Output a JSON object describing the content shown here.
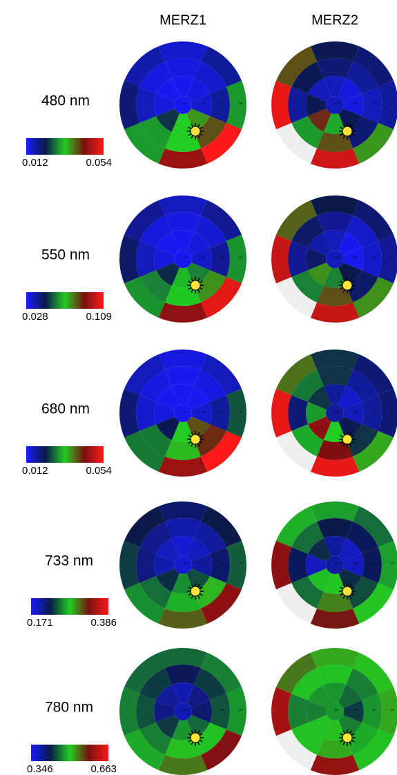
{
  "figure": {
    "columns": [
      "MERZ1",
      "MERZ2"
    ],
    "ring_labels": [
      "80°",
      "60°",
      "40°",
      "20°"
    ],
    "colormap": [
      "#1a1aff",
      "#0a1a4a",
      "#22cc22",
      "#7a1010",
      "#ff1a1a"
    ],
    "missing_color": "#eeeeee",
    "rows": [
      {
        "label": "480 nm",
        "colorbar": {
          "min": 0.012,
          "max": 0.054
        },
        "plots": [
          {
            "cells": [
              [
                0.013,
                0.014,
                0.015,
                0.036,
                0.033,
                0.024,
                0.014,
                0.013
              ],
              [
                0.014,
                0.015,
                0.018,
                0.04,
                0.033,
                0.03,
                0.016,
                0.014
              ],
              [
                0.015,
                0.018,
                0.03,
                0.054,
                0.046,
                0.03,
                0.02,
                0.017
              ]
            ]
          },
          {
            "cells": [
              [
                0.016,
                0.014,
                0.014,
                0.022,
                0.031,
                0.042,
                0.022,
                0.016
              ],
              [
                0.02,
                0.018,
                0.016,
                0.02,
                0.04,
                0.03,
                0.018,
                0.022
              ],
              [
                0.022,
                0.02,
                0.018,
                0.036,
                0.05,
                null,
                0.052,
                0.04
              ]
            ]
          }
        ]
      },
      {
        "label": "550 nm",
        "colorbar": {
          "min": 0.028,
          "max": 0.109
        },
        "plots": [
          {
            "cells": [
              [
                0.03,
                0.032,
                0.034,
                0.06,
                0.066,
                0.05,
                0.032,
                0.03
              ],
              [
                0.031,
                0.033,
                0.04,
                0.075,
                0.068,
                0.06,
                0.036,
                0.032
              ],
              [
                0.035,
                0.04,
                0.062,
                0.105,
                0.092,
                0.062,
                0.045,
                0.04
              ]
            ]
          },
          {
            "cells": [
              [
                0.036,
                0.03,
                0.03,
                0.048,
                0.06,
                0.075,
                0.045,
                0.038
              ],
              [
                0.04,
                0.034,
                0.034,
                0.045,
                0.082,
                0.06,
                0.04,
                0.045
              ],
              [
                0.048,
                0.044,
                0.04,
                0.075,
                0.1,
                null,
                0.1,
                0.08
              ]
            ]
          }
        ]
      },
      {
        "label": "680 nm",
        "colorbar": {
          "min": 0.012,
          "max": 0.054
        },
        "plots": [
          {
            "cells": [
              [
                0.013,
                0.013,
                0.015,
                0.04,
                0.033,
                0.022,
                0.014,
                0.013
              ],
              [
                0.013,
                0.014,
                0.018,
                0.042,
                0.034,
                0.028,
                0.015,
                0.014
              ],
              [
                0.014,
                0.016,
                0.026,
                0.054,
                0.046,
                0.028,
                0.02,
                0.016
              ]
            ]
          },
          {
            "cells": [
              [
                0.018,
                0.015,
                0.016,
                0.022,
                0.033,
                0.045,
                0.03,
                0.024
              ],
              [
                0.024,
                0.018,
                0.018,
                0.024,
                0.044,
                0.031,
                0.02,
                0.028
              ],
              [
                0.024,
                0.02,
                0.02,
                0.035,
                0.052,
                null,
                0.052,
                0.038
              ]
            ]
          }
        ]
      },
      {
        "label": "733 nm",
        "colorbar": {
          "min": 0.171,
          "max": 0.386
        },
        "plots": [
          {
            "cells": [
              [
                0.185,
                0.19,
                0.2,
                0.24,
                0.26,
                0.23,
                0.195,
                0.19
              ],
              [
                0.195,
                0.2,
                0.215,
                0.285,
                0.27,
                0.25,
                0.21,
                0.205
              ],
              [
                0.215,
                0.225,
                0.245,
                0.34,
                0.31,
                0.26,
                0.235,
                0.225
              ]
            ]
          },
          {
            "cells": [
              [
                0.2,
                0.19,
                0.19,
                0.23,
                0.28,
                0.275,
                0.19,
                0.23
              ],
              [
                0.225,
                0.22,
                0.22,
                0.24,
                0.3,
                0.25,
                0.22,
                0.25
              ],
              [
                0.265,
                0.25,
                0.265,
                0.28,
                0.33,
                null,
                0.34,
                0.27
              ]
            ]
          }
        ]
      },
      {
        "label": "780 nm",
        "colorbar": {
          "min": 0.346,
          "max": 0.663
        },
        "plots": [
          {
            "cells": [
              [
                0.38,
                0.4,
                0.41,
                0.46,
                0.48,
                0.44,
                0.4,
                0.39
              ],
              [
                0.42,
                0.44,
                0.45,
                0.5,
                0.51,
                0.47,
                0.45,
                0.44
              ],
              [
                0.46,
                0.47,
                0.48,
                0.59,
                0.54,
                0.49,
                0.47,
                0.46
              ]
            ]
          },
          {
            "cells": [
              [
                0.48,
                0.46,
                0.44,
                0.47,
                0.51,
                0.5,
                0.47,
                0.48
              ],
              [
                0.5,
                0.47,
                0.48,
                0.49,
                0.52,
                0.5,
                0.47,
                0.5
              ],
              [
                0.52,
                0.51,
                0.52,
                0.5,
                0.6,
                null,
                0.61,
                0.54
              ]
            ]
          }
        ]
      }
    ]
  }
}
